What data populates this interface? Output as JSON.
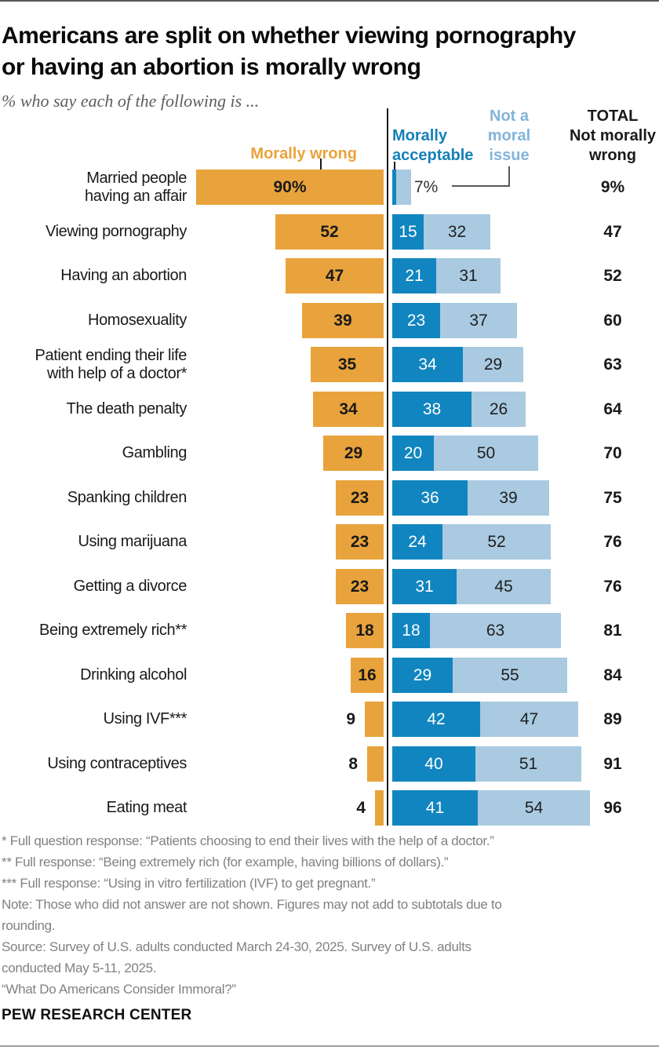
{
  "page": {
    "title_lines": [
      "Americans are split on whether viewing pornography",
      "or having an abortion is morally wrong"
    ],
    "subtitle": "% who say each of the following is ...",
    "footnotes": [
      "* Full question response: “Patients choosing to end their lives with the help of a doctor.”",
      "** Full response: “Being extremely rich (for example, having billions of dollars).”",
      "*** Full response: “Using in vitro fertilization (IVF) to get pregnant.”",
      "Note: Those who did not answer are not shown. Figures may not add to subtotals due to",
      "rounding.",
      "Source: Survey of U.S. adults conducted March 24-30, 2025. Survey of U.S. adults",
      "conducted May 5-11, 2025.",
      "“What Do Americans Consider Immoral?”"
    ],
    "brand": "PEW RESEARCH CENTER"
  },
  "colors": {
    "morally_wrong": "#E9A33C",
    "morally_acceptable": "#1185BF",
    "not_moral_issue": "#A9CAE1",
    "not_moral_legend_text": "#82B4D9",
    "wrong_legend_text": "#E9A33C",
    "acceptable_legend_text": "#1480B8",
    "total_legend_text": "#1a1a1a",
    "axis": "#1a1a1a",
    "footnote_text": "#7f8184"
  },
  "legend": {
    "wrong": "Morally wrong",
    "acceptable_lines": [
      "Morally",
      "acceptable"
    ],
    "not_moral_lines": [
      "Not a",
      "moral",
      "issue"
    ],
    "total_lines": [
      "TOTAL",
      "Not morally",
      "wrong"
    ]
  },
  "chart_data": {
    "type": "bar",
    "orientation": "horizontal-diverging",
    "unit": "%",
    "title": "Americans are split on whether viewing pornography or having an abortion is morally wrong",
    "series_names": [
      "Morally wrong",
      "Morally acceptable",
      "Not a moral issue",
      "TOTAL Not morally wrong"
    ],
    "callout": {
      "text": "7%",
      "refers_to": "Not a moral issue"
    },
    "rows": [
      {
        "label_lines": [
          "Married people",
          "having an affair"
        ],
        "wrong": 90,
        "wrong_display": "90%",
        "acceptable": 2,
        "acceptable_display": "",
        "not_moral": 7,
        "not_moral_display": "",
        "total_display": "9%",
        "has_callout": true
      },
      {
        "label_lines": [
          "Viewing pornography"
        ],
        "wrong": 52,
        "wrong_display": "52",
        "acceptable": 15,
        "acceptable_display": "15",
        "not_moral": 32,
        "not_moral_display": "32",
        "total_display": "47"
      },
      {
        "label_lines": [
          "Having an abortion"
        ],
        "wrong": 47,
        "wrong_display": "47",
        "acceptable": 21,
        "acceptable_display": "21",
        "not_moral": 31,
        "not_moral_display": "31",
        "total_display": "52"
      },
      {
        "label_lines": [
          "Homosexuality"
        ],
        "wrong": 39,
        "wrong_display": "39",
        "acceptable": 23,
        "acceptable_display": "23",
        "not_moral": 37,
        "not_moral_display": "37",
        "total_display": "60"
      },
      {
        "label_lines": [
          "Patient ending their life",
          "with help of a doctor*"
        ],
        "wrong": 35,
        "wrong_display": "35",
        "acceptable": 34,
        "acceptable_display": "34",
        "not_moral": 29,
        "not_moral_display": "29",
        "total_display": "63"
      },
      {
        "label_lines": [
          "The death penalty"
        ],
        "wrong": 34,
        "wrong_display": "34",
        "acceptable": 38,
        "acceptable_display": "38",
        "not_moral": 26,
        "not_moral_display": "26",
        "total_display": "64"
      },
      {
        "label_lines": [
          "Gambling"
        ],
        "wrong": 29,
        "wrong_display": "29",
        "acceptable": 20,
        "acceptable_display": "20",
        "not_moral": 50,
        "not_moral_display": "50",
        "total_display": "70"
      },
      {
        "label_lines": [
          "Spanking children"
        ],
        "wrong": 23,
        "wrong_display": "23",
        "acceptable": 36,
        "acceptable_display": "36",
        "not_moral": 39,
        "not_moral_display": "39",
        "total_display": "75"
      },
      {
        "label_lines": [
          "Using marijuana"
        ],
        "wrong": 23,
        "wrong_display": "23",
        "acceptable": 24,
        "acceptable_display": "24",
        "not_moral": 52,
        "not_moral_display": "52",
        "total_display": "76"
      },
      {
        "label_lines": [
          "Getting a divorce"
        ],
        "wrong": 23,
        "wrong_display": "23",
        "acceptable": 31,
        "acceptable_display": "31",
        "not_moral": 45,
        "not_moral_display": "45",
        "total_display": "76"
      },
      {
        "label_lines": [
          "Being extremely rich**"
        ],
        "wrong": 18,
        "wrong_display": "18",
        "acceptable": 18,
        "acceptable_display": "18",
        "not_moral": 63,
        "not_moral_display": "63",
        "total_display": "81"
      },
      {
        "label_lines": [
          "Drinking alcohol"
        ],
        "wrong": 16,
        "wrong_display": "16",
        "acceptable": 29,
        "acceptable_display": "29",
        "not_moral": 55,
        "not_moral_display": "55",
        "total_display": "84"
      },
      {
        "label_lines": [
          "Using IVF***"
        ],
        "wrong": 9,
        "wrong_display": "9",
        "acceptable": 42,
        "acceptable_display": "42",
        "not_moral": 47,
        "not_moral_display": "47",
        "total_display": "89"
      },
      {
        "label_lines": [
          "Using contraceptives"
        ],
        "wrong": 8,
        "wrong_display": "8",
        "acceptable": 40,
        "acceptable_display": "40",
        "not_moral": 51,
        "not_moral_display": "51",
        "total_display": "91"
      },
      {
        "label_lines": [
          "Eating meat"
        ],
        "wrong": 4,
        "wrong_display": "4",
        "acceptable": 41,
        "acceptable_display": "41",
        "not_moral": 54,
        "not_moral_display": "54",
        "total_display": "96"
      }
    ]
  }
}
